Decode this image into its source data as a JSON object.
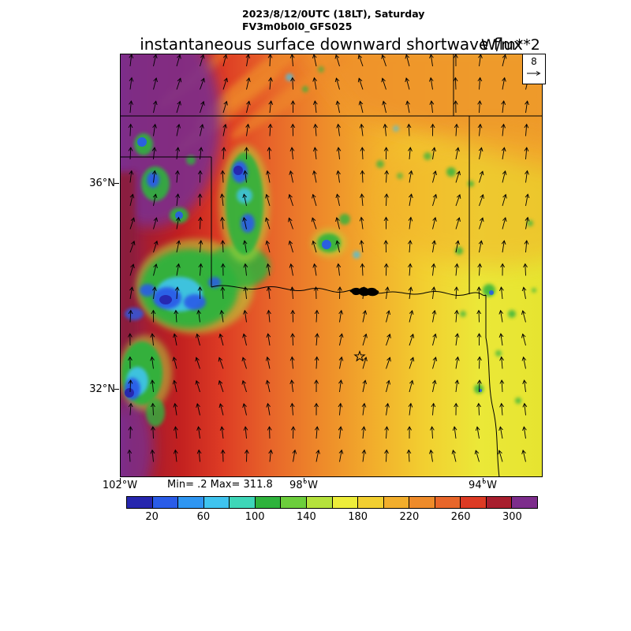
{
  "header": {
    "datetime_line": "2023/8/12/0UTC (18LT), Saturday",
    "model_line": "FV3m0b0l0_GFS025"
  },
  "title": {
    "main": "instantaneous surface downward shortwave flux",
    "units": "W/m**2"
  },
  "stats": {
    "minmax_label": "Min= .2 Max= 311.8"
  },
  "axes": {
    "lat_ticks": [
      "36°N",
      "32°N"
    ],
    "lon_ticks": [
      "102°W",
      "98°W",
      "94°W"
    ]
  },
  "vector_ref": {
    "value": "8"
  },
  "colorbar": {
    "labels": [
      "20",
      "60",
      "100",
      "140",
      "180",
      "220",
      "260",
      "300"
    ],
    "colors": [
      "#2626ae",
      "#2a5ce8",
      "#2f96f2",
      "#3fc4ef",
      "#3ed6b8",
      "#2eb33c",
      "#6cce3c",
      "#b5e23c",
      "#eded3a",
      "#f2cf30",
      "#f2ae2c",
      "#ee8b2a",
      "#e8662a",
      "#dd3b24",
      "#a81e2e",
      "#7d2d8c"
    ]
  },
  "chart_data": {
    "type": "heatmap",
    "title": "instantaneous surface downward shortwave flux",
    "units": "W/m**2",
    "valid_time": "2023/8/12/0UTC (18LT), Saturday",
    "model": "FV3m0b0l0_GFS025",
    "field_min": 0.2,
    "field_max": 311.8,
    "contour_interval": 20,
    "colorbar_tick_values": [
      20,
      60,
      100,
      140,
      180,
      220,
      260,
      300
    ],
    "colorbar_colors": [
      "#2626ae",
      "#2a5ce8",
      "#2f96f2",
      "#3fc4ef",
      "#3ed6b8",
      "#2eb33c",
      "#6cce3c",
      "#b5e23c",
      "#eded3a",
      "#f2cf30",
      "#f2ae2c",
      "#ee8b2a",
      "#e8662a",
      "#dd3b24",
      "#a81e2e",
      "#7d2d8c"
    ],
    "lat_tick_labels": [
      "36°N",
      "32°N"
    ],
    "lon_tick_labels": [
      "102°W",
      "98°W",
      "94°W"
    ],
    "wind_vector_reference": 8,
    "overlays": [
      "wind vectors",
      "state boundaries",
      "lake",
      "star marker"
    ],
    "legend_position": "bottom",
    "value_pattern": "high flux (red/purple, ~260-310) in the west, mid flux (orange, ~200-260) in the center, lower flux (yellow, ~160-200) in the east, cloud-reduced minima (green/blue, <140) clustered in the northwest quadrant and lower-left edge"
  }
}
